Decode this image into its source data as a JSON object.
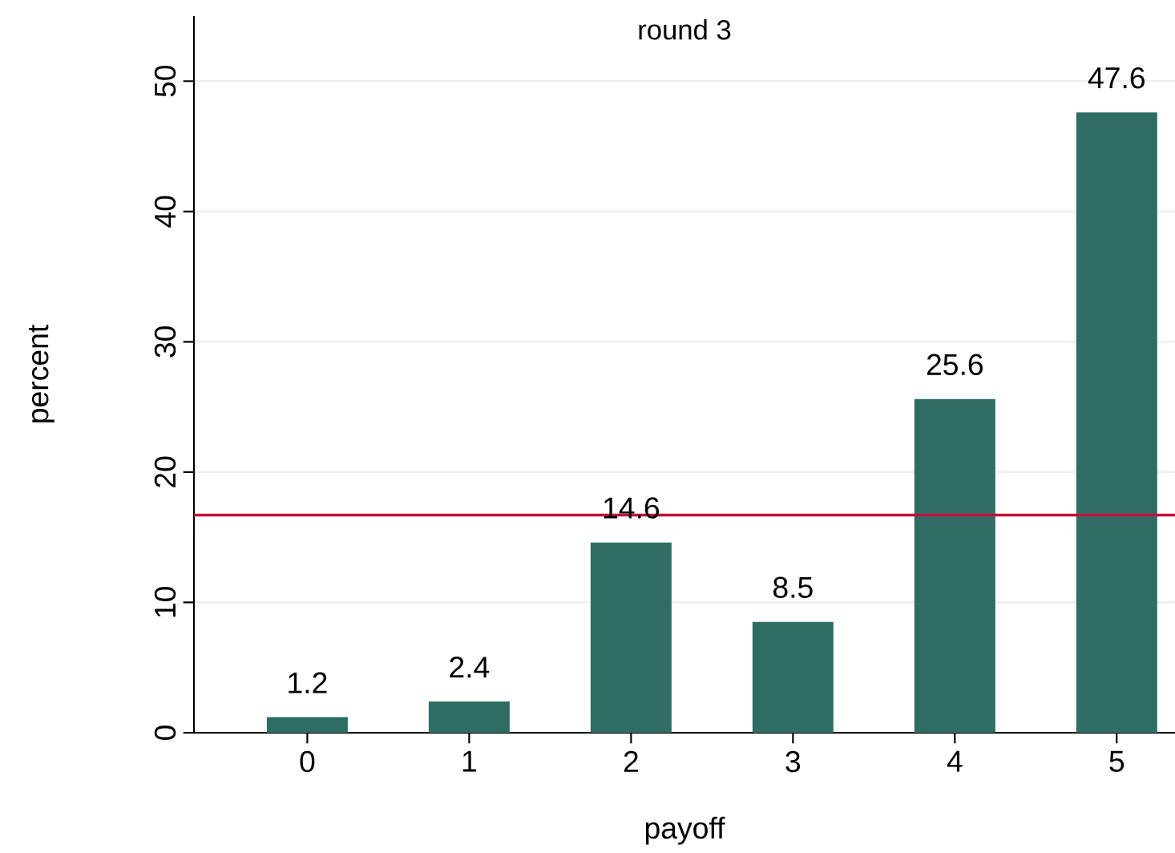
{
  "chart_data": {
    "type": "bar",
    "title": "round 3",
    "xlabel": "payoff",
    "ylabel": "percent",
    "categories": [
      "0",
      "1",
      "2",
      "3",
      "4",
      "5"
    ],
    "values": [
      1.2,
      2.4,
      14.6,
      8.5,
      25.6,
      47.6
    ],
    "color": "#2f6d64",
    "ylim": [
      0,
      55
    ],
    "yticks": [
      0,
      10,
      20,
      30,
      40,
      50
    ],
    "grid": "y",
    "data_labels": true,
    "ref_lines": [
      {
        "axis": "y",
        "value": 16.7,
        "color": "#c0103c"
      }
    ]
  }
}
